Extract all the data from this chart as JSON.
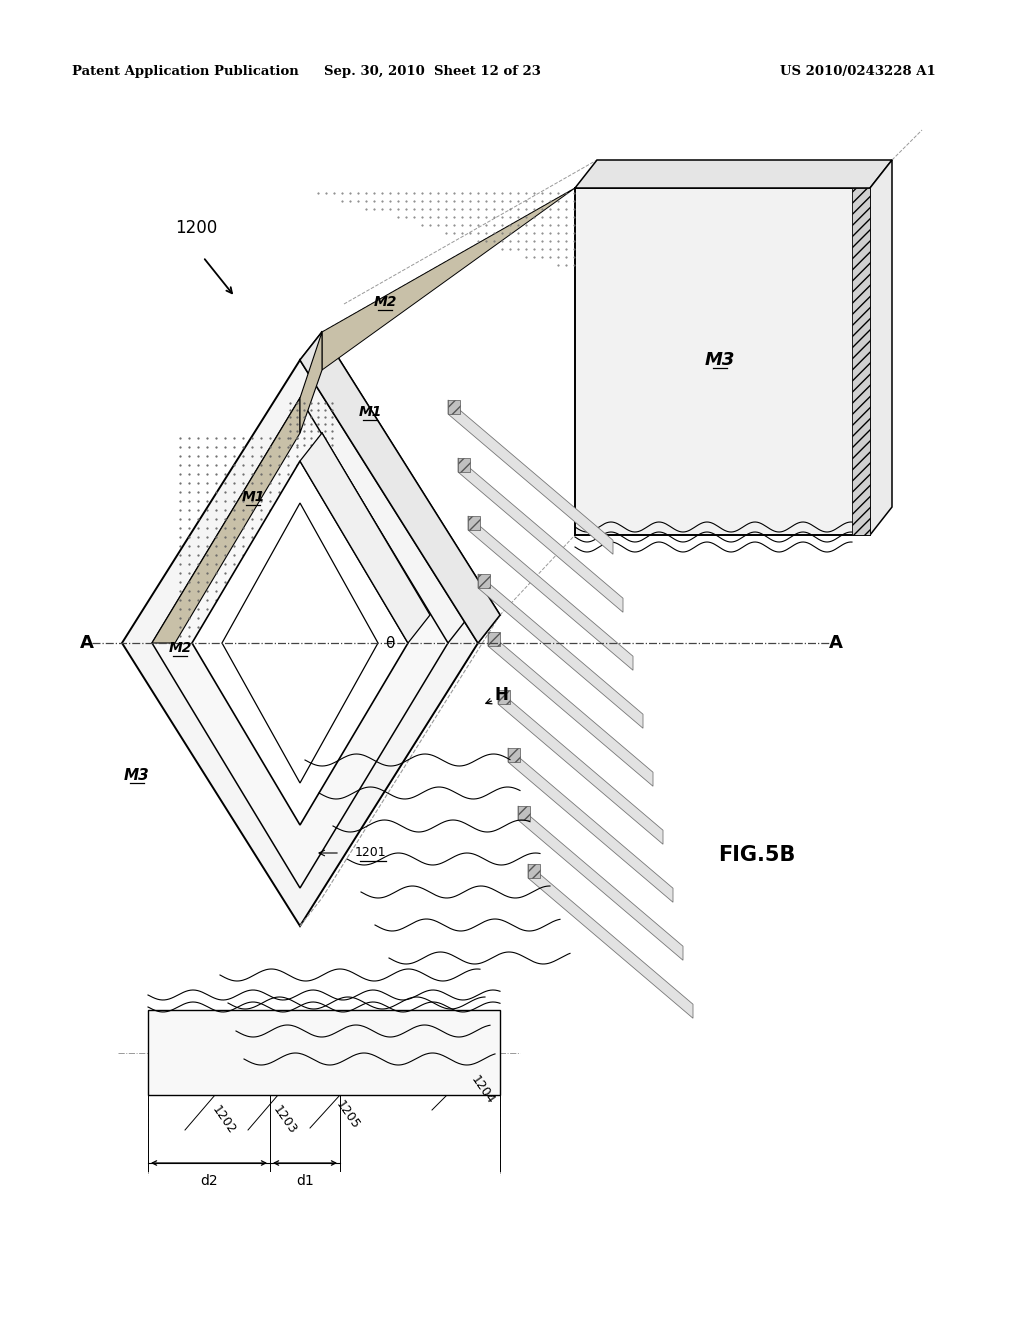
{
  "header_left": "Patent Application Publication",
  "header_center": "Sep. 30, 2010  Sheet 12 of 23",
  "header_right": "US 2010/0243228 A1",
  "fig_label": "FIG.5B",
  "bg": "#ffffff",
  "lc": "#000000",
  "gray": "#999999",
  "dotfill": "#c8c0a8",
  "theta": "θ"
}
